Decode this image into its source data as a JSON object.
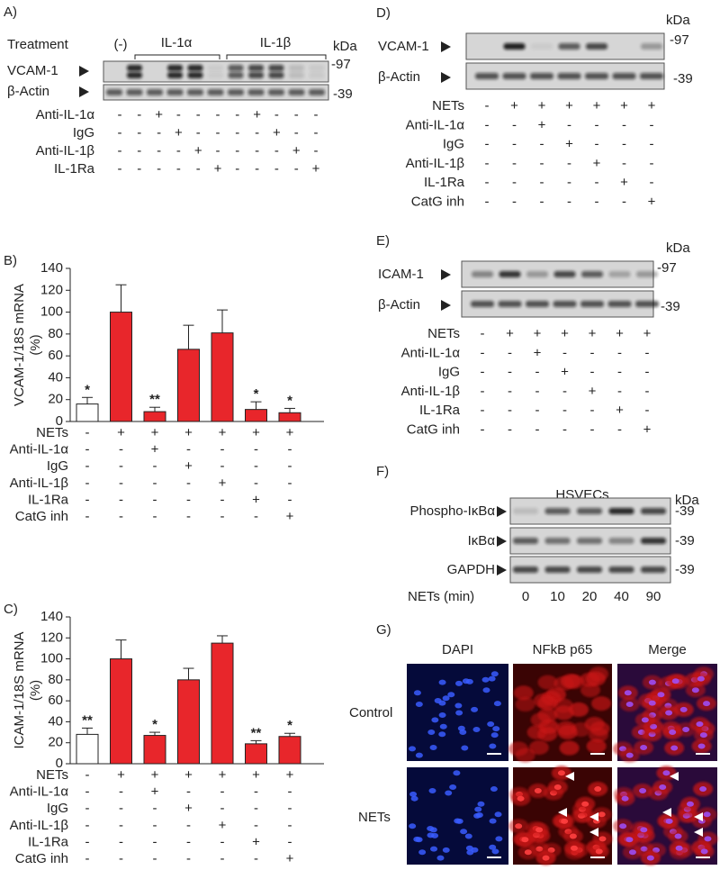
{
  "panel_a": {
    "label": "A)",
    "treatment": "Treatment",
    "groups": [
      "(-)",
      "IL-1α",
      "IL-1β"
    ],
    "kda": "kDa",
    "blots": [
      {
        "name": "VCAM-1",
        "marker": "-97"
      },
      {
        "name": "β-Actin",
        "marker": "-39"
      }
    ],
    "rows": [
      {
        "name": "Anti-IL-1α",
        "signs": [
          "-",
          "-",
          "+",
          "-",
          "-",
          "-",
          "-",
          "+",
          "-",
          "-",
          "-"
        ]
      },
      {
        "name": "IgG",
        "signs": [
          "-",
          "-",
          "-",
          "+",
          "-",
          "-",
          "-",
          "-",
          "+",
          "-",
          "-"
        ]
      },
      {
        "name": "Anti-IL-1β",
        "signs": [
          "-",
          "-",
          "-",
          "-",
          "+",
          "-",
          "-",
          "-",
          "-",
          "+",
          "-"
        ]
      },
      {
        "name": "IL-1Ra",
        "signs": [
          "-",
          "-",
          "-",
          "-",
          "-",
          "+",
          "-",
          "-",
          "-",
          "-",
          "+"
        ]
      }
    ]
  },
  "panel_d": {
    "label": "D)",
    "kda": "kDa",
    "blots": [
      {
        "name": "VCAM-1",
        "marker": "-97"
      },
      {
        "name": "β-Actin",
        "marker": "-39"
      }
    ],
    "rows": [
      {
        "name": "NETs",
        "signs": [
          "-",
          "+",
          "+",
          "+",
          "+",
          "+",
          "+"
        ]
      },
      {
        "name": "Anti-IL-1α",
        "signs": [
          "-",
          "-",
          "+",
          "-",
          "-",
          "-",
          "-"
        ]
      },
      {
        "name": "IgG",
        "signs": [
          "-",
          "-",
          "-",
          "+",
          "-",
          "-",
          "-"
        ]
      },
      {
        "name": "Anti-IL-1β",
        "signs": [
          "-",
          "-",
          "-",
          "-",
          "+",
          "-",
          "-"
        ]
      },
      {
        "name": "IL-1Ra",
        "signs": [
          "-",
          "-",
          "-",
          "-",
          "-",
          "+",
          "-"
        ]
      },
      {
        "name": "CatG inh",
        "signs": [
          "-",
          "-",
          "-",
          "-",
          "-",
          "-",
          "+"
        ]
      }
    ]
  },
  "panel_e": {
    "label": "E)",
    "kda": "kDa",
    "blots": [
      {
        "name": "ICAM-1",
        "marker": "-97"
      },
      {
        "name": "β-Actin",
        "marker": "-39"
      }
    ],
    "rows": [
      {
        "name": "NETs",
        "signs": [
          "-",
          "+",
          "+",
          "+",
          "+",
          "+",
          "+"
        ]
      },
      {
        "name": "Anti-IL-1α",
        "signs": [
          "-",
          "-",
          "+",
          "-",
          "-",
          "-",
          "-"
        ]
      },
      {
        "name": "IgG",
        "signs": [
          "-",
          "-",
          "-",
          "+",
          "-",
          "-",
          "-"
        ]
      },
      {
        "name": "Anti-IL-1β",
        "signs": [
          "-",
          "-",
          "-",
          "-",
          "+",
          "-",
          "-"
        ]
      },
      {
        "name": "IL-1Ra",
        "signs": [
          "-",
          "-",
          "-",
          "-",
          "-",
          "+",
          "-"
        ]
      },
      {
        "name": "CatG inh",
        "signs": [
          "-",
          "-",
          "-",
          "-",
          "-",
          "-",
          "+"
        ]
      }
    ]
  },
  "panel_f": {
    "label": "F)",
    "title": "HSVECs",
    "kda": "kDa",
    "blots": [
      {
        "name": "Phospho-IκBα",
        "marker": "-39"
      },
      {
        "name": "IκBα",
        "marker": "-39"
      },
      {
        "name": "GAPDH",
        "marker": "-39"
      }
    ],
    "treatment_label": "NETs (min)",
    "times": [
      0,
      10,
      20,
      40,
      90
    ]
  },
  "panel_g": {
    "label": "G)",
    "columns": [
      "DAPI",
      "NFkB p65",
      "Merge"
    ],
    "rows": [
      "Control",
      "NETs"
    ]
  },
  "chart_data": [
    {
      "type": "bar",
      "label": "B)",
      "y_label": "VCAM-1/18S mRNA",
      "y_label_unit": "(%)",
      "values": [
        16,
        100,
        9,
        66,
        81,
        11,
        8
      ],
      "errors": [
        6,
        25,
        4,
        22,
        21,
        7,
        4
      ],
      "annotations": [
        "*",
        null,
        "**",
        null,
        null,
        "*",
        "*"
      ],
      "colors": [
        "#ffffff",
        "#e8262b",
        "#e8262b",
        "#e8262b",
        "#e8262b",
        "#e8262b",
        "#e8262b"
      ],
      "ylim": [
        0,
        140
      ],
      "yticks": [
        0,
        20,
        40,
        60,
        80,
        100,
        120,
        140
      ],
      "treatments": [
        {
          "name": "NETs",
          "signs": [
            "-",
            "+",
            "+",
            "+",
            "+",
            "+",
            "+"
          ]
        },
        {
          "name": "Anti-IL-1α",
          "signs": [
            "-",
            "-",
            "+",
            "-",
            "-",
            "-",
            "-"
          ]
        },
        {
          "name": "IgG",
          "signs": [
            "-",
            "-",
            "-",
            "+",
            "-",
            "-",
            "-"
          ]
        },
        {
          "name": "Anti-IL-1β",
          "signs": [
            "-",
            "-",
            "-",
            "-",
            "+",
            "-",
            "-"
          ]
        },
        {
          "name": "IL-1Ra",
          "signs": [
            "-",
            "-",
            "-",
            "-",
            "-",
            "+",
            "-"
          ]
        },
        {
          "name": "CatG inh",
          "signs": [
            "-",
            "-",
            "-",
            "-",
            "-",
            "-",
            "+"
          ]
        }
      ]
    },
    {
      "type": "bar",
      "label": "C)",
      "y_label": "ICAM-1/18S mRNA",
      "y_label_unit": "(%)",
      "values": [
        28,
        100,
        27,
        80,
        115,
        19,
        26
      ],
      "errors": [
        6,
        18,
        3,
        11,
        7,
        3,
        3
      ],
      "annotations": [
        "**",
        null,
        "*",
        null,
        null,
        "**",
        "*"
      ],
      "colors": [
        "#ffffff",
        "#e8262b",
        "#e8262b",
        "#e8262b",
        "#e8262b",
        "#e8262b",
        "#e8262b"
      ],
      "ylim": [
        0,
        140
      ],
      "yticks": [
        0,
        20,
        40,
        60,
        80,
        100,
        120,
        140
      ],
      "treatments": [
        {
          "name": "NETs",
          "signs": [
            "-",
            "+",
            "+",
            "+",
            "+",
            "+",
            "+"
          ]
        },
        {
          "name": "Anti-IL-1α",
          "signs": [
            "-",
            "-",
            "+",
            "-",
            "-",
            "-",
            "-"
          ]
        },
        {
          "name": "IgG",
          "signs": [
            "-",
            "-",
            "-",
            "+",
            "-",
            "-",
            "-"
          ]
        },
        {
          "name": "Anti-IL-1β",
          "signs": [
            "-",
            "-",
            "-",
            "-",
            "+",
            "-",
            "-"
          ]
        },
        {
          "name": "IL-1Ra",
          "signs": [
            "-",
            "-",
            "-",
            "-",
            "-",
            "+",
            "-"
          ]
        },
        {
          "name": "CatG inh",
          "signs": [
            "-",
            "-",
            "-",
            "-",
            "-",
            "-",
            "+"
          ]
        }
      ]
    }
  ]
}
